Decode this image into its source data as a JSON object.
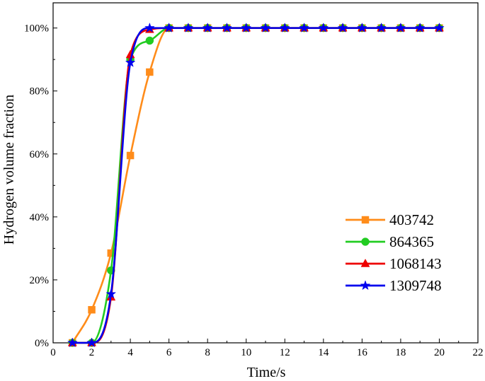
{
  "chart_data": {
    "type": "line",
    "title": "",
    "xlabel": "Time/s",
    "ylabel": "Hydrogen volume fraction",
    "xlim": [
      0,
      22
    ],
    "ylim": [
      0,
      108
    ],
    "x_ticks": [
      0,
      2,
      4,
      6,
      8,
      10,
      12,
      14,
      16,
      18,
      20,
      22
    ],
    "y_ticks": [
      0,
      20,
      40,
      60,
      80,
      100
    ],
    "y_tick_labels": [
      "0%",
      "20%",
      "40%",
      "60%",
      "80%",
      "100%"
    ],
    "grid": false,
    "legend_position": "bottom-right",
    "x": [
      1,
      2,
      3,
      4,
      5,
      6,
      7,
      8,
      9,
      10,
      11,
      12,
      13,
      14,
      15,
      16,
      17,
      18,
      19,
      20
    ],
    "series": [
      {
        "name": "403742",
        "color": "#FF8C1A",
        "marker": "square",
        "values": [
          0,
          10.5,
          28.5,
          59.5,
          86,
          100,
          100,
          100,
          100,
          100,
          100,
          100,
          100,
          100,
          100,
          100,
          100,
          100,
          100,
          100
        ]
      },
      {
        "name": "864365",
        "color": "#22CC22",
        "marker": "circle",
        "values": [
          0,
          0,
          23,
          90,
          96,
          100,
          100,
          100,
          100,
          100,
          100,
          100,
          100,
          100,
          100,
          100,
          100,
          100,
          100,
          100
        ]
      },
      {
        "name": "1068143",
        "color": "#EE0000",
        "marker": "triangle",
        "values": [
          0,
          0,
          14.5,
          91.5,
          99.5,
          100,
          100,
          100,
          100,
          100,
          100,
          100,
          100,
          100,
          100,
          100,
          100,
          100,
          100,
          100
        ]
      },
      {
        "name": "1309748",
        "color": "#0000EE",
        "marker": "star",
        "values": [
          0,
          0,
          15.5,
          89,
          100,
          100,
          100,
          100,
          100,
          100,
          100,
          100,
          100,
          100,
          100,
          100,
          100,
          100,
          100,
          100
        ]
      }
    ]
  }
}
